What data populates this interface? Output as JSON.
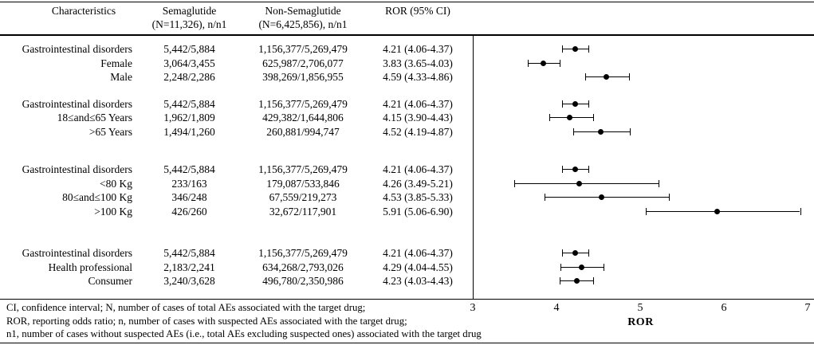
{
  "table_header": {
    "characteristics": "Characteristics",
    "semaglutide_line1": "Semaglutide",
    "semaglutide_line2": "(N=11,326), n/n1",
    "non_semaglutide_line1": "Non-Semaglutide",
    "non_semaglutide_line2": "(N=6,425,856), n/n1",
    "ror": "ROR (95% CI)"
  },
  "chart_data": {
    "type": "scatter",
    "title": "",
    "xlabel": "ROR",
    "xlim": [
      3,
      7
    ],
    "x_ticks": [
      3,
      4,
      5,
      6,
      7
    ],
    "grid": false,
    "marker": "filled-black-circle-with-ci-whiskers",
    "groups": [
      {
        "rows": [
          {
            "label": "Gastrointestinal disorders",
            "semaglutide": "5,442/5,884",
            "non_semaglutide": "1,156,377/5,269,479",
            "ror_text": "4.21 (4.06-4.37)",
            "ror": 4.21,
            "ci_low": 4.06,
            "ci_high": 4.37
          },
          {
            "label": "Female",
            "semaglutide": "3,064/3,455",
            "non_semaglutide": "625,987/2,706,077",
            "ror_text": "3.83 (3.65-4.03)",
            "ror": 3.83,
            "ci_low": 3.65,
            "ci_high": 4.03
          },
          {
            "label": "Male",
            "semaglutide": "2,248/2,286",
            "non_semaglutide": "398,269/1,856,955",
            "ror_text": "4.59 (4.33-4.86)",
            "ror": 4.59,
            "ci_low": 4.33,
            "ci_high": 4.86
          }
        ]
      },
      {
        "rows": [
          {
            "label": "Gastrointestinal disorders",
            "semaglutide": "5,442/5,884",
            "non_semaglutide": "1,156,377/5,269,479",
            "ror_text": "4.21 (4.06-4.37)",
            "ror": 4.21,
            "ci_low": 4.06,
            "ci_high": 4.37
          },
          {
            "label": "18≤and≤65 Years",
            "semaglutide": "1,962/1,809",
            "non_semaglutide": "429,382/1,644,806",
            "ror_text": "4.15 (3.90-4.43)",
            "ror": 4.15,
            "ci_low": 3.9,
            "ci_high": 4.43
          },
          {
            "label": ">65 Years",
            "semaglutide": "1,494/1,260",
            "non_semaglutide": "260,881/994,747",
            "ror_text": "4.52 (4.19-4.87)",
            "ror": 4.52,
            "ci_low": 4.19,
            "ci_high": 4.87
          }
        ]
      },
      {
        "rows": [
          {
            "label": "Gastrointestinal disorders",
            "semaglutide": "5,442/5,884",
            "non_semaglutide": "1,156,377/5,269,479",
            "ror_text": "4.21 (4.06-4.37)",
            "ror": 4.21,
            "ci_low": 4.06,
            "ci_high": 4.37
          },
          {
            "label": "<80 Kg",
            "semaglutide": "233/163",
            "non_semaglutide": "179,087/533,846",
            "ror_text": "4.26 (3.49-5.21)",
            "ror": 4.26,
            "ci_low": 3.49,
            "ci_high": 5.21
          },
          {
            "label": "80≤and≤100 Kg",
            "semaglutide": "346/248",
            "non_semaglutide": "67,559/219,273",
            "ror_text": "4.53 (3.85-5.33)",
            "ror": 4.53,
            "ci_low": 3.85,
            "ci_high": 5.33
          },
          {
            "label": ">100 Kg",
            "semaglutide": "426/260",
            "non_semaglutide": "32,672/117,901",
            "ror_text": "5.91 (5.06-6.90)",
            "ror": 5.91,
            "ci_low": 5.06,
            "ci_high": 6.9
          }
        ]
      },
      {
        "rows": [
          {
            "label": "Gastrointestinal disorders",
            "semaglutide": "5,442/5,884",
            "non_semaglutide": "1,156,377/5,269,479",
            "ror_text": "4.21 (4.06-4.37)",
            "ror": 4.21,
            "ci_low": 4.06,
            "ci_high": 4.37
          },
          {
            "label": "Health professional",
            "semaglutide": "2,183/2,241",
            "non_semaglutide": "634,268/2,793,026",
            "ror_text": "4.29 (4.04-4.55)",
            "ror": 4.29,
            "ci_low": 4.04,
            "ci_high": 4.55
          },
          {
            "label": "Consumer",
            "semaglutide": "3,240/3,628",
            "non_semaglutide": "496,780/2,350,986",
            "ror_text": "4.23 (4.03-4.43)",
            "ror": 4.23,
            "ci_low": 4.03,
            "ci_high": 4.43
          }
        ]
      }
    ]
  },
  "axis": {
    "label": "ROR"
  },
  "footnotes": [
    "CI, confidence interval; N, number of cases of total AEs associated with the target drug;",
    "ROR, reporting odds ratio; n, number of cases with suspected AEs associated with the target drug;",
    "n1, number of cases without suspected AEs (i.e., total AEs excluding suspected ones) associated with the target drug"
  ]
}
